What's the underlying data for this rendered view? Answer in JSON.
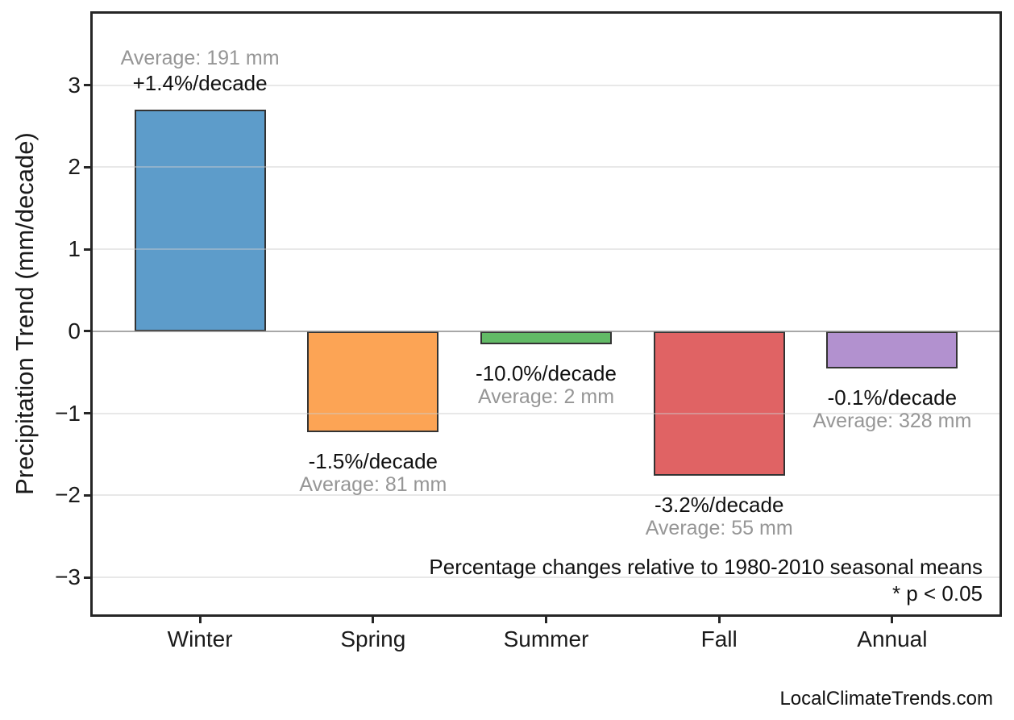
{
  "chart_data": {
    "type": "bar",
    "title": "",
    "categories": [
      "Winter",
      "Spring",
      "Summer",
      "Fall",
      "Annual"
    ],
    "values": [
      2.7,
      -1.23,
      -0.16,
      -1.76,
      -0.45
    ],
    "bar_colors": [
      "#5D9CCA",
      "#FCA455",
      "#62BA66",
      "#E06364",
      "#B291CF"
    ],
    "bar_edge_color": "#333333",
    "pct_labels": [
      "+1.4%/decade",
      "-1.5%/decade",
      "-10.0%/decade",
      "-3.2%/decade",
      "-0.1%/decade"
    ],
    "avg_labels": [
      "Average: 191 mm",
      "Average: 81 mm",
      "Average: 2 mm",
      "Average: 55 mm",
      "Average: 328 mm"
    ],
    "averages_mm": [
      191,
      81,
      2,
      55,
      328
    ],
    "pct_per_decade": [
      1.4,
      -1.5,
      -10.0,
      -3.2,
      -0.1
    ],
    "xlabel": "",
    "ylabel": "Precipitation Trend (mm/decade)",
    "ylim": [
      -3.45,
      3.87
    ],
    "xlim": [
      -0.62,
      4.62
    ],
    "bar_width_units": 0.76,
    "yticks": [
      -3,
      -2,
      -1,
      0,
      1,
      2,
      3
    ],
    "ytick_labels": [
      "−3",
      "−2",
      "−1",
      "0",
      "1",
      "2",
      "3"
    ],
    "grid": true,
    "grid_on_top": true,
    "zero_line": true,
    "legend_position": "none",
    "annotation_line1": "Percentage changes relative to 1980-2010 seasonal means",
    "annotation_line2": "* p < 0.05",
    "footer": "LocalClimateTrends.com",
    "colors": {
      "zero_line": "#8a8a8a",
      "spine": "#262626",
      "grid": "#ebebeb",
      "pct_text": "#111111",
      "avg_text": "#969696"
    }
  }
}
